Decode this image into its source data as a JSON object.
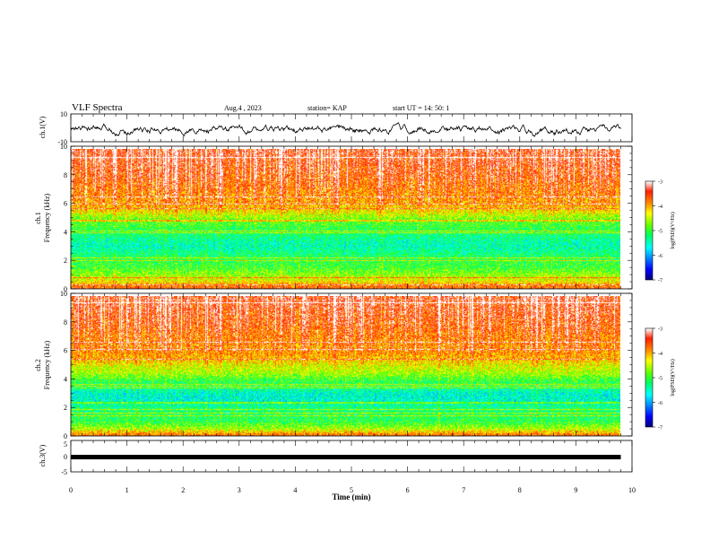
{
  "header": {
    "title": "VLF Spectra",
    "date": "Aug.4 , 2023",
    "station": "station= KAP",
    "start": "start UT = 14: 50: 1"
  },
  "colorbar": {
    "label": "log(PSD)(V²/Hz)",
    "ticks": [
      "-3",
      "-4",
      "-5",
      "-6",
      "-7"
    ],
    "colors": [
      "#000080",
      "#0000ff",
      "#0090ff",
      "#00ffff",
      "#00ff60",
      "#60ff00",
      "#ffff00",
      "#ff9000",
      "#ff2000",
      "#ffffff"
    ]
  },
  "panels": {
    "ch1_wave": {
      "ylabel": "ch.1(V)",
      "ticks": [
        "10",
        "-10"
      ]
    },
    "ch1_spec": {
      "ylabel_line1": "ch.1",
      "ylabel_line2": "Frequency (kHz)",
      "ticks": [
        "10",
        "8",
        "6",
        "4",
        "2",
        "0"
      ]
    },
    "ch2_spec": {
      "ylabel_line1": "ch.2",
      "ylabel_line2": "Frequency (kHz)",
      "ticks": [
        "10",
        "8",
        "6",
        "4",
        "2",
        "0"
      ]
    },
    "ch3_wave": {
      "ylabel": "ch.3(V)",
      "ticks": [
        "5",
        "0",
        "-5"
      ]
    }
  },
  "xaxis": {
    "label": "Time (min)",
    "ticks": [
      "0",
      "1",
      "2",
      "3",
      "4",
      "5",
      "6",
      "7",
      "8",
      "9",
      "10"
    ]
  },
  "chart_data": [
    {
      "type": "line",
      "channel": "ch.1",
      "ylabel": "ch.1(V)",
      "ylim": [
        -10,
        10
      ],
      "xlim": [
        0,
        10
      ],
      "x_end_min": 9.8,
      "description_values": "noisy waveform roughly between -7 and 5 V throughout 0-9.8 min"
    },
    {
      "type": "heatmap",
      "channel": "ch.1",
      "xlabel": "Time (min)",
      "ylabel": "Frequency (kHz)",
      "xlim": [
        0,
        10
      ],
      "ylim": [
        0,
        10
      ],
      "x_end_min": 9.8,
      "zlabel": "log(PSD)(V²/Hz)",
      "zlim": [
        -7,
        -3
      ],
      "freq_profile_khz": [
        [
          0,
          -3.6
        ],
        [
          0.5,
          -4.3
        ],
        [
          1,
          -4.7
        ],
        [
          1.5,
          -5.0
        ],
        [
          2,
          -5.1
        ],
        [
          2.5,
          -5.3
        ],
        [
          3,
          -5.5
        ],
        [
          3.5,
          -5.4
        ],
        [
          4,
          -5.2
        ],
        [
          4.5,
          -5.0
        ],
        [
          5,
          -4.8
        ],
        [
          5.5,
          -4.3
        ],
        [
          6,
          -4.0
        ],
        [
          7,
          -3.8
        ],
        [
          8,
          -3.6
        ],
        [
          9,
          -3.5
        ],
        [
          10,
          -3.4
        ]
      ]
    },
    {
      "type": "heatmap",
      "channel": "ch.2",
      "xlabel": "Time (min)",
      "ylabel": "Frequency (kHz)",
      "xlim": [
        0,
        10
      ],
      "ylim": [
        0,
        10
      ],
      "x_end_min": 9.8,
      "zlabel": "log(PSD)(V²/Hz)",
      "zlim": [
        -7,
        -3
      ],
      "freq_profile_khz": [
        [
          0,
          -3.7
        ],
        [
          0.5,
          -4.6
        ],
        [
          1,
          -5.1
        ],
        [
          1.5,
          -5.2
        ],
        [
          2,
          -5.3
        ],
        [
          2.5,
          -5.6
        ],
        [
          3,
          -5.6
        ],
        [
          3.5,
          -5.3
        ],
        [
          4,
          -5.0
        ],
        [
          4.5,
          -4.6
        ],
        [
          5,
          -4.4
        ],
        [
          5.5,
          -4.1
        ],
        [
          6,
          -3.9
        ],
        [
          7,
          -3.8
        ],
        [
          8,
          -3.6
        ],
        [
          9,
          -3.5
        ],
        [
          10,
          -3.4
        ]
      ]
    },
    {
      "type": "line",
      "channel": "ch.3",
      "ylabel": "ch.3(V)",
      "ylim": [
        -5,
        5
      ],
      "xlim": [
        0,
        10
      ],
      "x_end_min": 9.8,
      "level_v": -0.3
    }
  ]
}
